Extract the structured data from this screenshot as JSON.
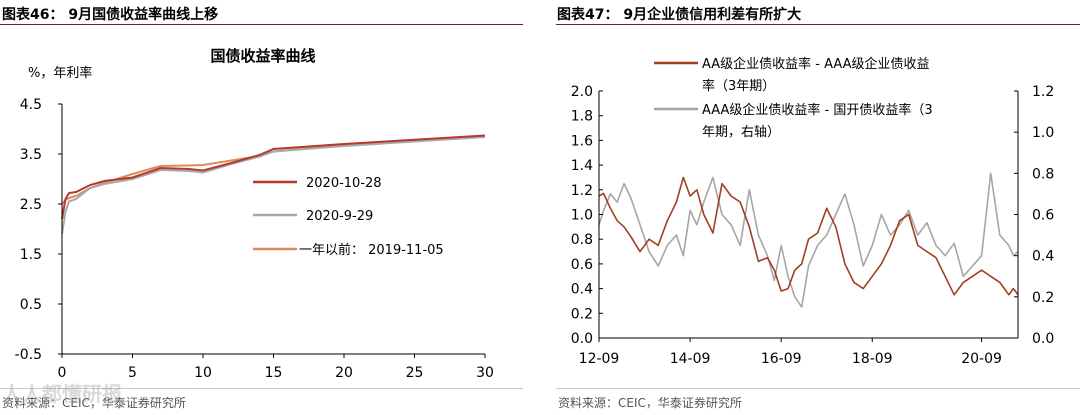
{
  "source_text": "资料来源：CEIC，华泰证券研究所",
  "watermark": "人人都懂研报",
  "chart_data": [
    {
      "type": "line",
      "panel_title": "图表46：  9月国债收益率曲线上移",
      "title": "国债收益率曲线",
      "ylabel": "%，年利率",
      "xlabel": "",
      "xlim": [
        0,
        30
      ],
      "ylim": [
        -0.5,
        4.5
      ],
      "x_ticks": [
        0,
        5,
        10,
        15,
        20,
        25,
        30
      ],
      "y_ticks": [
        4.5,
        3.5,
        2.5,
        1.5,
        0.5,
        -0.5
      ],
      "y_tick_labels": [
        "4.5",
        "3.5",
        "2.5",
        "1.5",
        "0.5",
        "-0.5"
      ],
      "legend_position": "center-right",
      "series": [
        {
          "name": "2020-10-28",
          "color": "#b5392c",
          "x": [
            0,
            0.25,
            0.5,
            1,
            2,
            3,
            5,
            7,
            9,
            10,
            12,
            14,
            15,
            20,
            30
          ],
          "y": [
            2.2,
            2.6,
            2.72,
            2.74,
            2.88,
            2.96,
            3.03,
            3.22,
            3.2,
            3.17,
            3.32,
            3.48,
            3.6,
            3.7,
            3.87
          ]
        },
        {
          "name": "2020-9-29",
          "color": "#a9a9a9",
          "x": [
            0,
            0.25,
            0.5,
            1,
            2,
            3,
            5,
            7,
            9,
            10,
            12,
            14,
            15,
            20,
            30
          ],
          "y": [
            1.9,
            2.35,
            2.55,
            2.6,
            2.82,
            2.9,
            3.0,
            3.18,
            3.16,
            3.13,
            3.3,
            3.45,
            3.55,
            3.66,
            3.84
          ]
        },
        {
          "name": "一年以前：  2019-11-05",
          "color": "#e08a5a",
          "x": [
            0,
            0.25,
            0.5,
            1,
            2,
            3,
            5,
            7,
            9,
            10,
            12,
            14,
            15,
            20,
            30
          ],
          "y": [
            2.5,
            2.58,
            2.62,
            2.66,
            2.82,
            2.92,
            3.1,
            3.26,
            3.27,
            3.28,
            3.37,
            3.46,
            3.55,
            3.68,
            3.85
          ]
        }
      ]
    },
    {
      "type": "line",
      "panel_title": "图表47：  9月企业债信用利差有所扩大",
      "title": "",
      "xlabel": "",
      "ylabel_left": "",
      "ylabel_right": "",
      "x_ticks": [
        "12-09",
        "14-09",
        "16-09",
        "18-09",
        "20-09"
      ],
      "ylim_left": [
        0.0,
        2.0
      ],
      "ylim_right": [
        0.0,
        1.2
      ],
      "y_ticks_left": [
        2.0,
        1.8,
        1.6,
        1.4,
        1.2,
        1.0,
        0.8,
        0.6,
        0.4,
        0.2,
        0.0
      ],
      "y_tick_labels_left": [
        "2.0",
        "1.8",
        "1.6",
        "1.4",
        "1.2",
        "1.0",
        "0.8",
        "0.6",
        "0.4",
        "0.2",
        "0.0"
      ],
      "y_ticks_right": [
        1.2,
        1.0,
        0.8,
        0.6,
        0.4,
        0.2,
        0.0
      ],
      "y_tick_labels_right": [
        "1.2",
        "1.0",
        "0.8",
        "0.6",
        "0.4",
        "0.2",
        "0.0"
      ],
      "legend_position": "top-right",
      "series": [
        {
          "name_line1": "AA级企业债收益率 - AAA级企业债收益",
          "name_line2": "率（3年期）",
          "axis": "left",
          "color": "#a0401f",
          "t": [
            0,
            0.1,
            0.25,
            0.4,
            0.55,
            0.7,
            0.9,
            1.1,
            1.3,
            1.5,
            1.7,
            1.85,
            2.0,
            2.15,
            2.3,
            2.5,
            2.7,
            2.9,
            3.1,
            3.3,
            3.5,
            3.7,
            3.85,
            4.0,
            4.15,
            4.3,
            4.45,
            4.6,
            4.8,
            5.0,
            5.2,
            5.4,
            5.6,
            5.8,
            6.0,
            6.2,
            6.4,
            6.6,
            6.8,
            7.0,
            7.2,
            7.4,
            7.6,
            7.8,
            8.0,
            8.2,
            8.4,
            8.6,
            8.8,
            9.0,
            9.1,
            9.2
          ],
          "values": [
            1.15,
            1.17,
            1.05,
            0.95,
            0.9,
            0.82,
            0.7,
            0.8,
            0.75,
            0.95,
            1.1,
            1.3,
            1.15,
            1.2,
            1.0,
            0.85,
            1.25,
            1.15,
            1.1,
            0.9,
            0.62,
            0.65,
            0.55,
            0.38,
            0.4,
            0.55,
            0.6,
            0.8,
            0.85,
            1.05,
            0.9,
            0.6,
            0.45,
            0.4,
            0.5,
            0.6,
            0.75,
            0.95,
            1.0,
            0.75,
            0.7,
            0.65,
            0.5,
            0.35,
            0.45,
            0.5,
            0.55,
            0.5,
            0.45,
            0.35,
            0.4,
            0.35
          ]
        },
        {
          "name_line1": "AAA级企业债收益率 - 国开债收益率（3",
          "name_line2": "年期，右轴）",
          "axis": "right",
          "color": "#a6a6a6",
          "t": [
            0,
            0.1,
            0.25,
            0.4,
            0.55,
            0.7,
            0.9,
            1.1,
            1.3,
            1.5,
            1.7,
            1.85,
            2.0,
            2.15,
            2.3,
            2.5,
            2.7,
            2.9,
            3.1,
            3.3,
            3.5,
            3.7,
            3.85,
            4.0,
            4.15,
            4.3,
            4.45,
            4.6,
            4.8,
            5.0,
            5.2,
            5.4,
            5.6,
            5.8,
            6.0,
            6.2,
            6.4,
            6.6,
            6.8,
            7.0,
            7.2,
            7.4,
            7.6,
            7.8,
            8.0,
            8.2,
            8.4,
            8.6,
            8.8,
            9.0,
            9.1,
            9.2
          ],
          "values": [
            0.55,
            0.62,
            0.7,
            0.66,
            0.75,
            0.68,
            0.55,
            0.42,
            0.35,
            0.45,
            0.5,
            0.4,
            0.62,
            0.55,
            0.66,
            0.78,
            0.6,
            0.55,
            0.45,
            0.72,
            0.5,
            0.4,
            0.28,
            0.45,
            0.3,
            0.2,
            0.15,
            0.35,
            0.45,
            0.5,
            0.6,
            0.7,
            0.55,
            0.35,
            0.45,
            0.6,
            0.5,
            0.55,
            0.62,
            0.5,
            0.56,
            0.45,
            0.4,
            0.46,
            0.3,
            0.35,
            0.4,
            0.8,
            0.5,
            0.45,
            0.4,
            0.42
          ]
        }
      ]
    }
  ]
}
